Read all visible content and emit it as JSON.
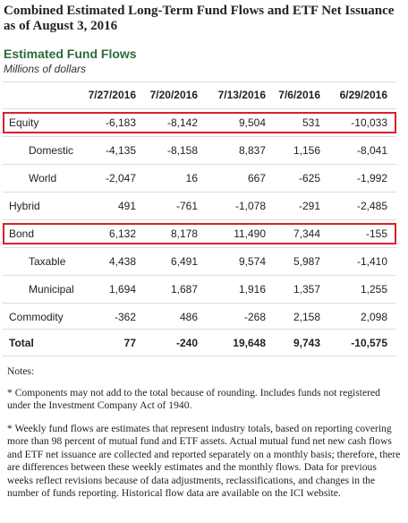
{
  "header": {
    "title": "Combined Estimated Long-Term Fund Flows and ETF Net Issuance as of August 3, 2016",
    "section": "Estimated Fund Flows",
    "units": "Millions of dollars"
  },
  "table": {
    "columns": [
      "7/27/2016",
      "7/20/2016",
      "7/13/2016",
      "7/6/2016",
      "6/29/2016"
    ],
    "rows": [
      [
        "Equity",
        "-6,183",
        "-8,142",
        "9,504",
        "531",
        "-10,033"
      ],
      [
        "Domestic",
        "-4,135",
        "-8,158",
        "8,837",
        "1,156",
        "-8,041"
      ],
      [
        "World",
        "-2,047",
        "16",
        "667",
        "-625",
        "-1,992"
      ],
      [
        "Hybrid",
        "491",
        "-761",
        "-1,078",
        "-291",
        "-2,485"
      ],
      [
        "Bond",
        "6,132",
        "8,178",
        "11,490",
        "7,344",
        "-155"
      ],
      [
        "Taxable",
        "4,438",
        "6,491",
        "9,574",
        "5,987",
        "-1,410"
      ],
      [
        "Municipal",
        "1,694",
        "1,687",
        "1,916",
        "1,357",
        "1,255"
      ],
      [
        "Commodity",
        "-362",
        "486",
        "-268",
        "2,158",
        "2,098"
      ],
      [
        "Total",
        "77",
        "-240",
        "19,648",
        "9,743",
        "-10,575"
      ]
    ]
  },
  "notes": {
    "heading": "Notes:",
    "items": [
      "* Components may not add to the total because of rounding. Includes funds not registered under the Investment Company Act of 1940.",
      "* Weekly fund flows are estimates that represent industry totals, based on reporting covering more than 98 percent of mutual fund and ETF assets. Actual mutual fund net new cash flows and ETF net issuance are collected and reported separately on a monthly basis; therefore, there are differences between these weekly estimates and the monthly flows. Data for previous weeks reflect revisions because of data adjustments, reclassifications, and changes in the number of funds reporting. Historical flow data are available on the ICI website."
    ]
  }
}
